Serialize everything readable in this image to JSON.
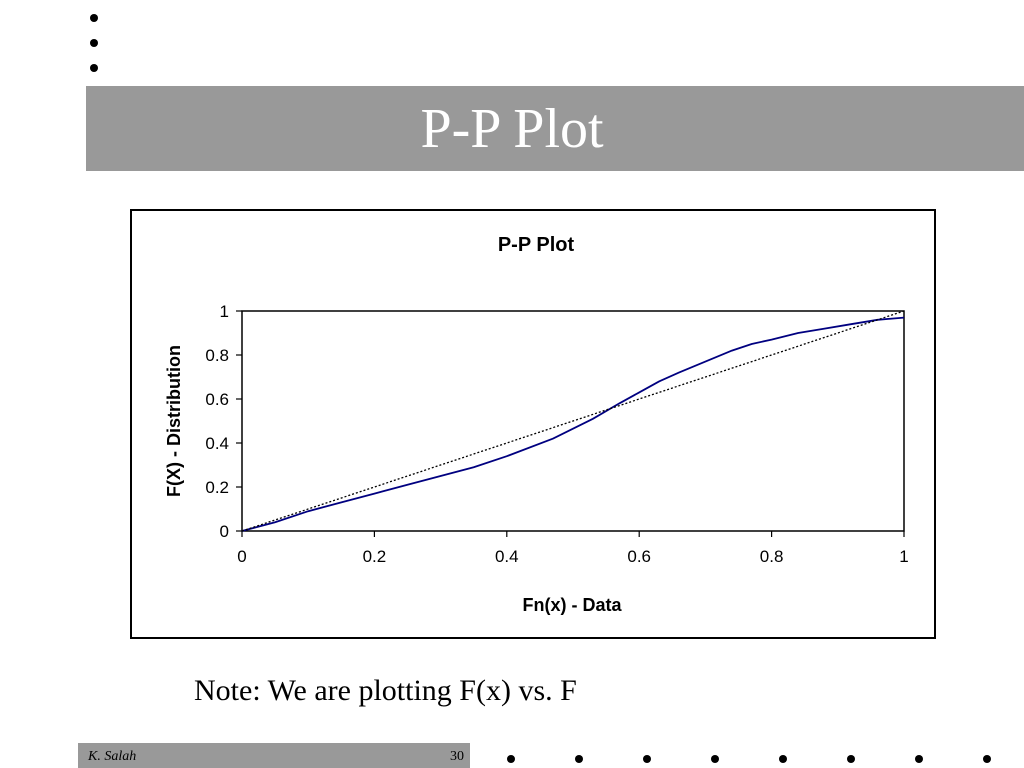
{
  "slide": {
    "title": "P-P Plot",
    "note": "Note: We are plotting F(x) vs. F",
    "footer_author": "K. Salah",
    "page_number": "30"
  },
  "colors": {
    "title_bar": "#999999",
    "series_line": "#000080",
    "reference_line": "#000000"
  },
  "chart_data": {
    "type": "line",
    "title": "P-P Plot",
    "xlabel": "Fn(x) - Data",
    "ylabel": "F(X) - Distribution",
    "xlim": [
      0,
      1
    ],
    "ylim": [
      0,
      1
    ],
    "xticks": [
      "0",
      "0.2",
      "0.4",
      "0.6",
      "0.8",
      "1"
    ],
    "yticks": [
      "0",
      "0.2",
      "0.4",
      "0.6",
      "0.8",
      "1"
    ],
    "grid": false,
    "legend": "none",
    "series": [
      {
        "style": "solid",
        "x": [
          0,
          0.05,
          0.1,
          0.15,
          0.2,
          0.25,
          0.3,
          0.35,
          0.4,
          0.47,
          0.53,
          0.57,
          0.6,
          0.63,
          0.66,
          0.7,
          0.74,
          0.77,
          0.8,
          0.84,
          0.88,
          0.92,
          0.96,
          1
        ],
        "y": [
          0,
          0.04,
          0.09,
          0.13,
          0.17,
          0.21,
          0.25,
          0.29,
          0.34,
          0.42,
          0.51,
          0.58,
          0.63,
          0.68,
          0.72,
          0.77,
          0.82,
          0.85,
          0.87,
          0.9,
          0.92,
          0.94,
          0.96,
          0.97
        ]
      },
      {
        "style": "dotted",
        "x": [
          0,
          1
        ],
        "y": [
          0,
          1
        ]
      }
    ]
  }
}
